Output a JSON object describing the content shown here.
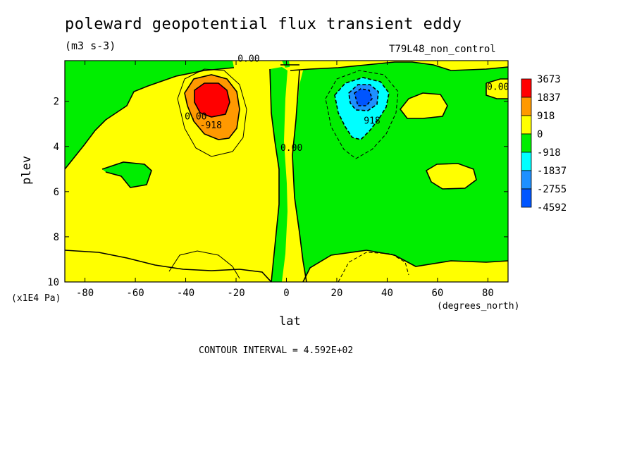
{
  "chart_data": {
    "type": "heatmap",
    "title": "poleward geopotential flux transient eddy",
    "units": "(m3 s-3)",
    "run_label": "T79L48_non_control",
    "xlabel": "lat",
    "xunits": "(degrees_north)",
    "ylabel": "plev",
    "yunits": "(x1E4 Pa)",
    "contour_interval_text": "CONTOUR INTERVAL = 4.592E+02",
    "xlim": [
      -88,
      88
    ],
    "ylim": [
      10,
      0.2
    ],
    "x_ticks": [
      -80,
      -60,
      -40,
      -20,
      0,
      20,
      40,
      60,
      80
    ],
    "y_ticks": [
      2,
      4,
      6,
      8,
      10
    ],
    "colorbar": {
      "labels": [
        "3673",
        "1837",
        "918",
        "0",
        "-918",
        "-1837",
        "-2755",
        "-4592"
      ],
      "colors": [
        "#ff0000",
        "#ff9900",
        "#ffff00",
        "#00ee00",
        "#00ffff",
        "#1e90ff",
        "#0055ff"
      ]
    },
    "contour_labels": [
      {
        "text": "0.00",
        "x": -36,
        "y": 2.8
      },
      {
        "text": "0.00",
        "x": -15,
        "y": 0.25
      },
      {
        "text": "-918",
        "x": -30,
        "y": 3.2
      },
      {
        "text": "0.00",
        "x": 2,
        "y": 4.2
      },
      {
        "text": "918",
        "x": 34,
        "y": 3.0
      },
      {
        "text": "0.00",
        "x": 84,
        "y": 1.5
      }
    ]
  }
}
